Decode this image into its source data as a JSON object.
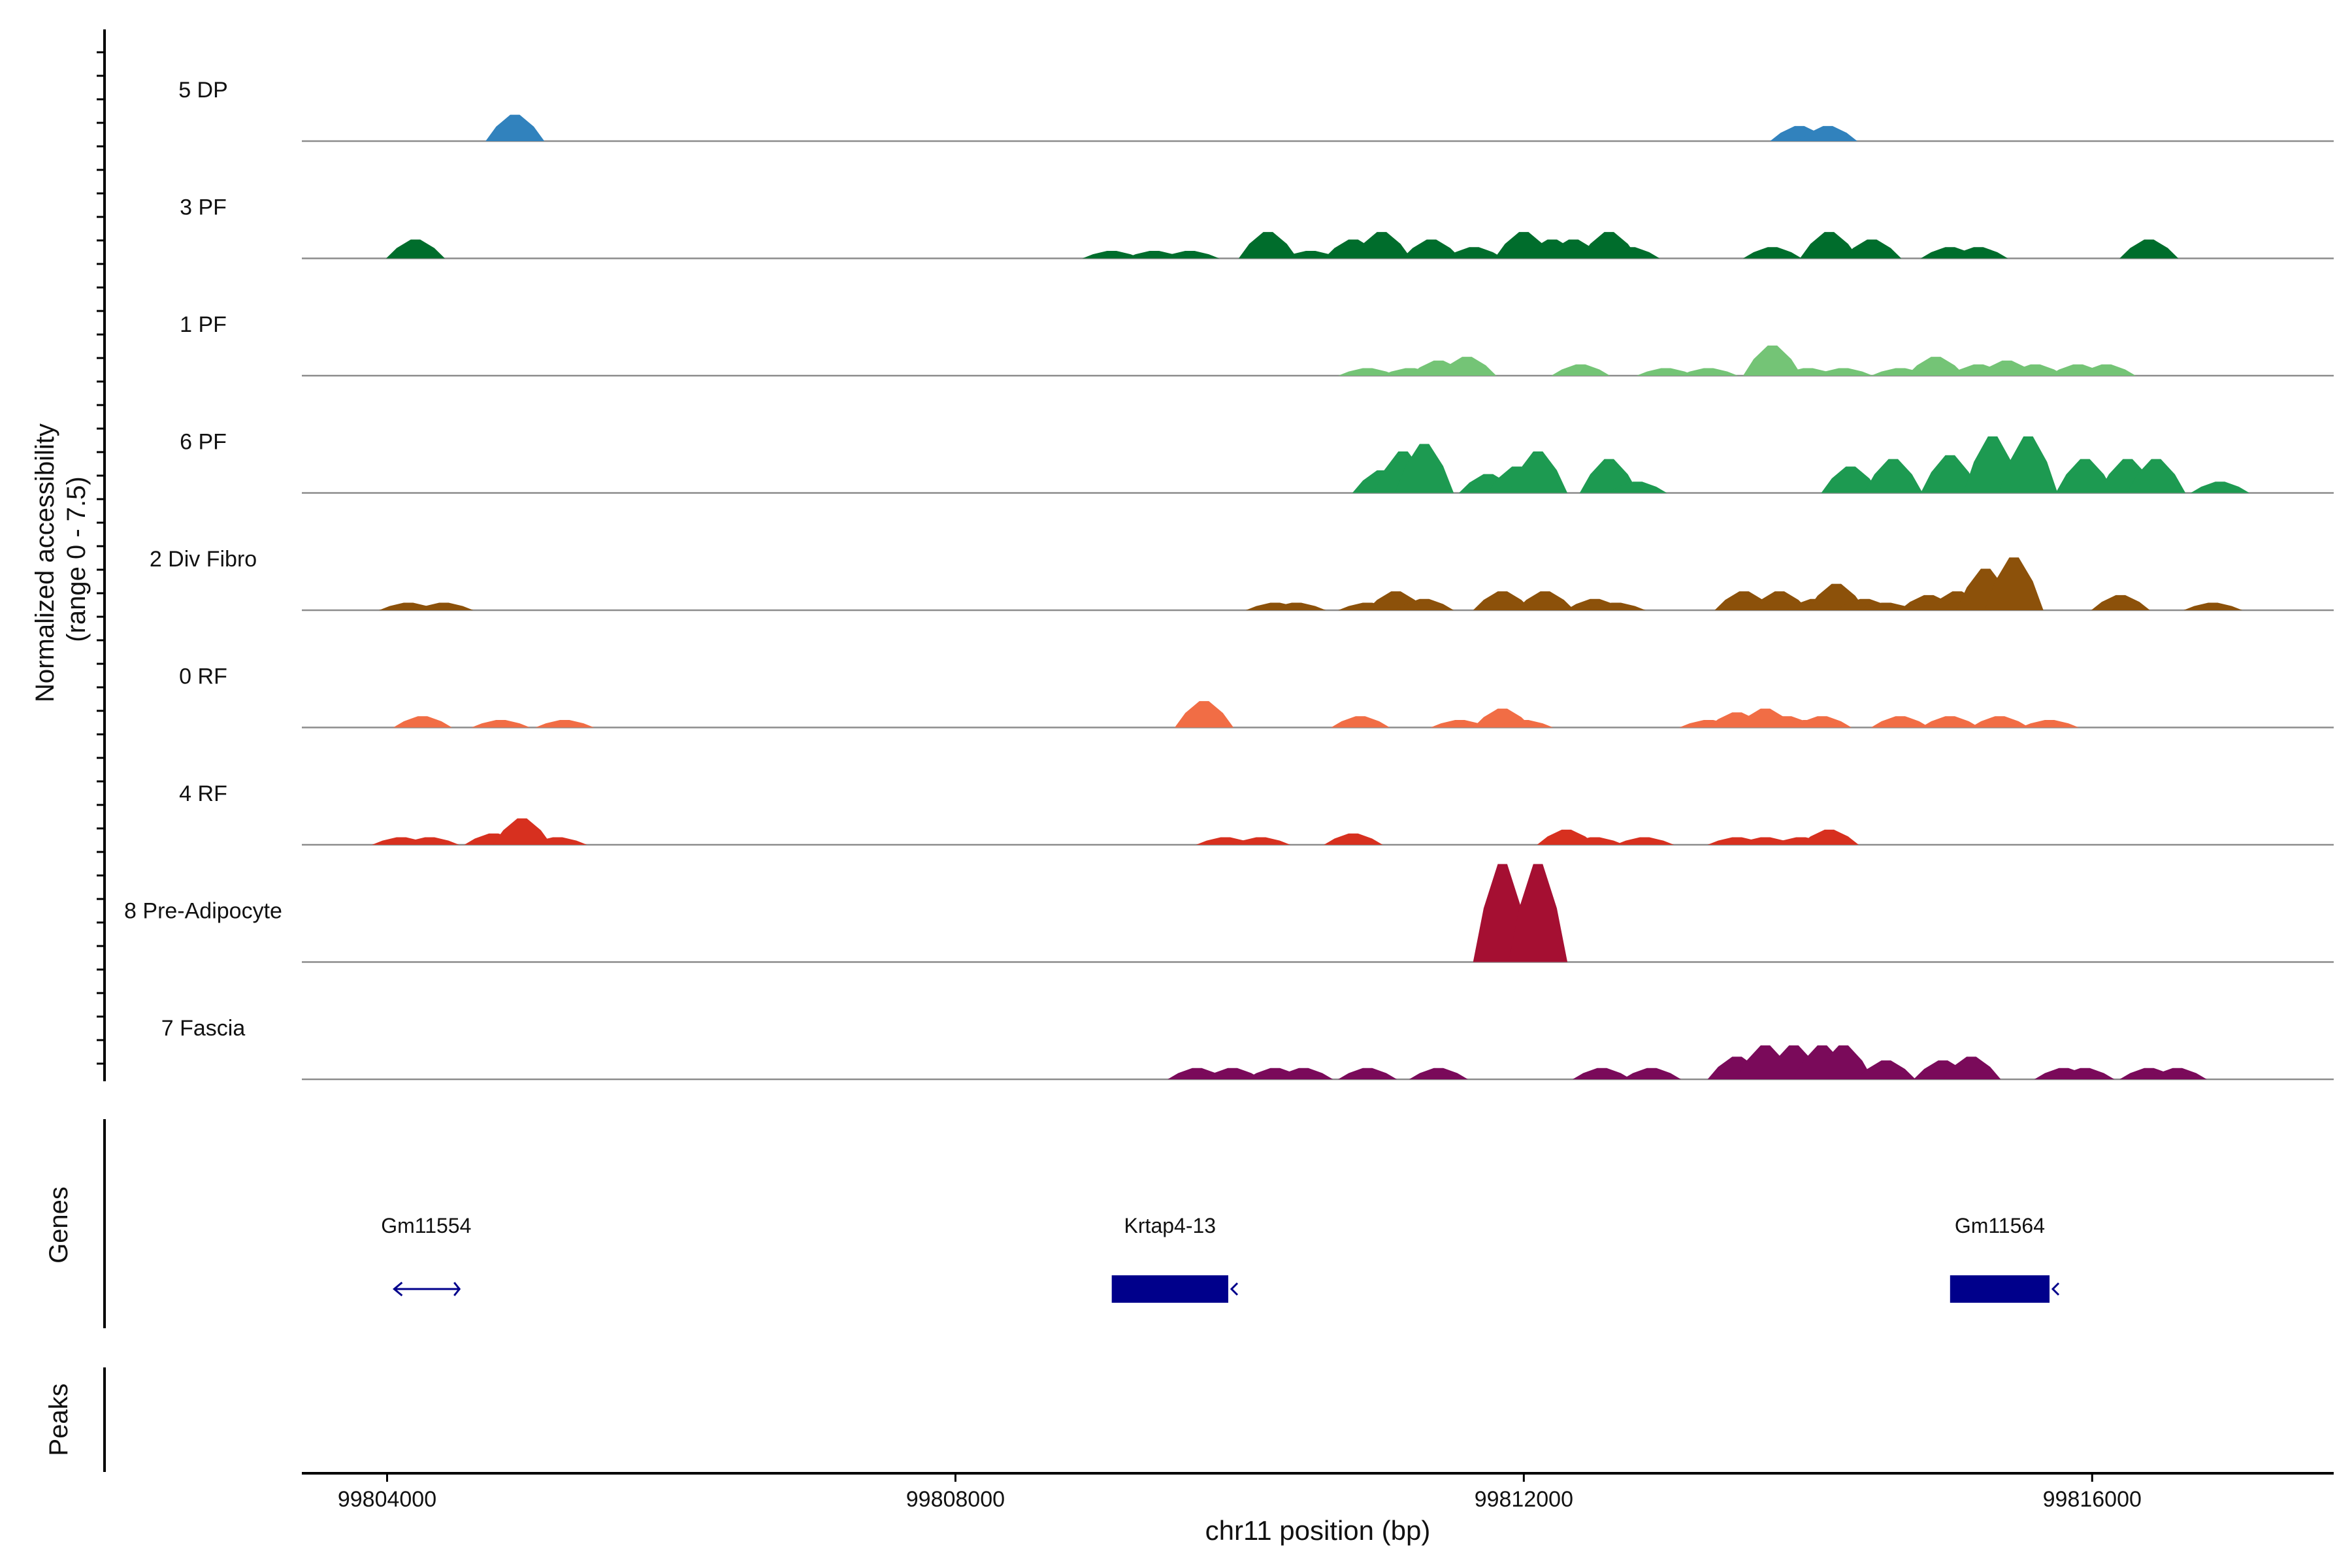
{
  "chart_data": {
    "type": "area",
    "title": "",
    "ylabel": "Normalized accessibility\n(range 0 - 7.5)",
    "xlabel": "chr11 position (bp)",
    "xlim": [
      99803400,
      99817700
    ],
    "ylim": [
      0,
      7.5
    ],
    "x_ticks": [
      {
        "value": 99804000,
        "label": "99804000"
      },
      {
        "value": 99808000,
        "label": "99808000"
      },
      {
        "value": 99812000,
        "label": "99812000"
      },
      {
        "value": 99816000,
        "label": "99816000"
      }
    ],
    "tracks": [
      {
        "name": "5 DP",
        "color": "#3182bd",
        "peaks": [
          [
            99804900,
            7
          ],
          [
            99813940,
            4
          ],
          [
            99814140,
            4
          ]
        ]
      },
      {
        "name": "3 PF",
        "color": "#006d2c",
        "peaks": [
          [
            99804200,
            5
          ],
          [
            99809100,
            2
          ],
          [
            99809400,
            2
          ],
          [
            99809650,
            2
          ],
          [
            99810200,
            7
          ],
          [
            99810500,
            2
          ],
          [
            99810800,
            5
          ],
          [
            99811000,
            7
          ],
          [
            99811350,
            5
          ],
          [
            99811650,
            3
          ],
          [
            99812000,
            7
          ],
          [
            99812200,
            5
          ],
          [
            99812350,
            5
          ],
          [
            99812600,
            7
          ],
          [
            99812750,
            3
          ],
          [
            99813750,
            3
          ],
          [
            99814150,
            7
          ],
          [
            99814450,
            5
          ],
          [
            99815000,
            3
          ],
          [
            99815200,
            3
          ],
          [
            99816400,
            5
          ]
        ]
      },
      {
        "name": "1 PF",
        "color": "#74c476",
        "peaks": [
          [
            99810900,
            2
          ],
          [
            99811200,
            2
          ],
          [
            99811400,
            4
          ],
          [
            99811600,
            5
          ],
          [
            99812400,
            3
          ],
          [
            99813000,
            2
          ],
          [
            99813300,
            2
          ],
          [
            99813750,
            8
          ],
          [
            99814000,
            2
          ],
          [
            99814250,
            2
          ],
          [
            99814650,
            2
          ],
          [
            99814900,
            5
          ],
          [
            99815200,
            3
          ],
          [
            99815400,
            4
          ],
          [
            99815600,
            3
          ],
          [
            99815900,
            3
          ],
          [
            99816100,
            3
          ]
        ]
      },
      {
        "name": "6 PF",
        "color": "#1d9a51",
        "peaks": [
          [
            99811000,
            6
          ],
          [
            99811150,
            11
          ],
          [
            99811300,
            13
          ],
          [
            99811750,
            5
          ],
          [
            99811950,
            7
          ],
          [
            99812100,
            11
          ],
          [
            99812600,
            9
          ],
          [
            99812800,
            3
          ],
          [
            99814300,
            7
          ],
          [
            99814600,
            9
          ],
          [
            99815000,
            10
          ],
          [
            99815300,
            15
          ],
          [
            99815550,
            15
          ],
          [
            99815950,
            9
          ],
          [
            99816250,
            9
          ],
          [
            99816450,
            9
          ],
          [
            99816900,
            3
          ]
        ]
      },
      {
        "name": "2 Div Fibro",
        "color": "#8c510a",
        "peaks": [
          [
            99804150,
            2
          ],
          [
            99804400,
            2
          ],
          [
            99810250,
            2
          ],
          [
            99810400,
            2
          ],
          [
            99810900,
            2
          ],
          [
            99811100,
            5
          ],
          [
            99811300,
            3
          ],
          [
            99811850,
            5
          ],
          [
            99812150,
            5
          ],
          [
            99812500,
            3
          ],
          [
            99812650,
            2
          ],
          [
            99813550,
            5
          ],
          [
            99813800,
            5
          ],
          [
            99814050,
            3
          ],
          [
            99814200,
            7
          ],
          [
            99814400,
            3
          ],
          [
            99814550,
            2
          ],
          [
            99814850,
            4
          ],
          [
            99815050,
            5
          ],
          [
            99815250,
            11
          ],
          [
            99815450,
            14
          ],
          [
            99816200,
            4
          ],
          [
            99816850,
            2
          ]
        ]
      },
      {
        "name": "0 RF",
        "color": "#f16d45",
        "peaks": [
          [
            99804250,
            3
          ],
          [
            99804800,
            2
          ],
          [
            99805250,
            2
          ],
          [
            99809750,
            7
          ],
          [
            99810850,
            3
          ],
          [
            99811550,
            2
          ],
          [
            99811850,
            5
          ],
          [
            99812000,
            2
          ],
          [
            99813300,
            2
          ],
          [
            99813500,
            4
          ],
          [
            99813700,
            5
          ],
          [
            99813850,
            3
          ],
          [
            99814000,
            2
          ],
          [
            99814100,
            3
          ],
          [
            99814650,
            3
          ],
          [
            99815000,
            3
          ],
          [
            99815350,
            3
          ],
          [
            99815700,
            2
          ]
        ]
      },
      {
        "name": "4 RF",
        "color": "#d7301f",
        "peaks": [
          [
            99804100,
            2
          ],
          [
            99804300,
            2
          ],
          [
            99804750,
            3
          ],
          [
            99804950,
            7
          ],
          [
            99805200,
            2
          ],
          [
            99809900,
            2
          ],
          [
            99810150,
            2
          ],
          [
            99810800,
            3
          ],
          [
            99812300,
            4
          ],
          [
            99812500,
            2
          ],
          [
            99812850,
            2
          ],
          [
            99813500,
            2
          ],
          [
            99813700,
            2
          ],
          [
            99813950,
            2
          ],
          [
            99814150,
            4
          ]
        ]
      },
      {
        "name": "8 Pre-Adipocyte",
        "color": "#a50f32",
        "peaks": [
          [
            99811850,
            26
          ],
          [
            99812100,
            26
          ]
        ]
      },
      {
        "name": "7 Fascia",
        "color": "#7a0a5a",
        "peaks": [
          [
            99809700,
            3
          ],
          [
            99809950,
            3
          ],
          [
            99810250,
            3
          ],
          [
            99810450,
            3
          ],
          [
            99810900,
            3
          ],
          [
            99811400,
            3
          ],
          [
            99812550,
            3
          ],
          [
            99812900,
            3
          ],
          [
            99813500,
            6
          ],
          [
            99813700,
            9
          ],
          [
            99813900,
            9
          ],
          [
            99814100,
            9
          ],
          [
            99814250,
            9
          ],
          [
            99814550,
            5
          ],
          [
            99814950,
            5
          ],
          [
            99815150,
            6
          ],
          [
            99815800,
            3
          ],
          [
            99815950,
            3
          ],
          [
            99816400,
            3
          ],
          [
            99816600,
            3
          ]
        ]
      }
    ],
    "genes_label": "Genes",
    "peaks_label": "Peaks",
    "genes": [
      {
        "name": "Gm11554",
        "start": 99804050,
        "end": 99804500,
        "strand": "-",
        "type": "intron"
      },
      {
        "name": "Krtap4-13",
        "start": 99809100,
        "end": 99809920,
        "strand": "-",
        "type": "exon"
      },
      {
        "name": "Gm11564",
        "start": 99815000,
        "end": 99815700,
        "strand": "-",
        "type": "exon"
      }
    ]
  },
  "colors": {
    "gene": "#00008b",
    "baseline": "#8c8c8c",
    "axis": "#000000"
  }
}
